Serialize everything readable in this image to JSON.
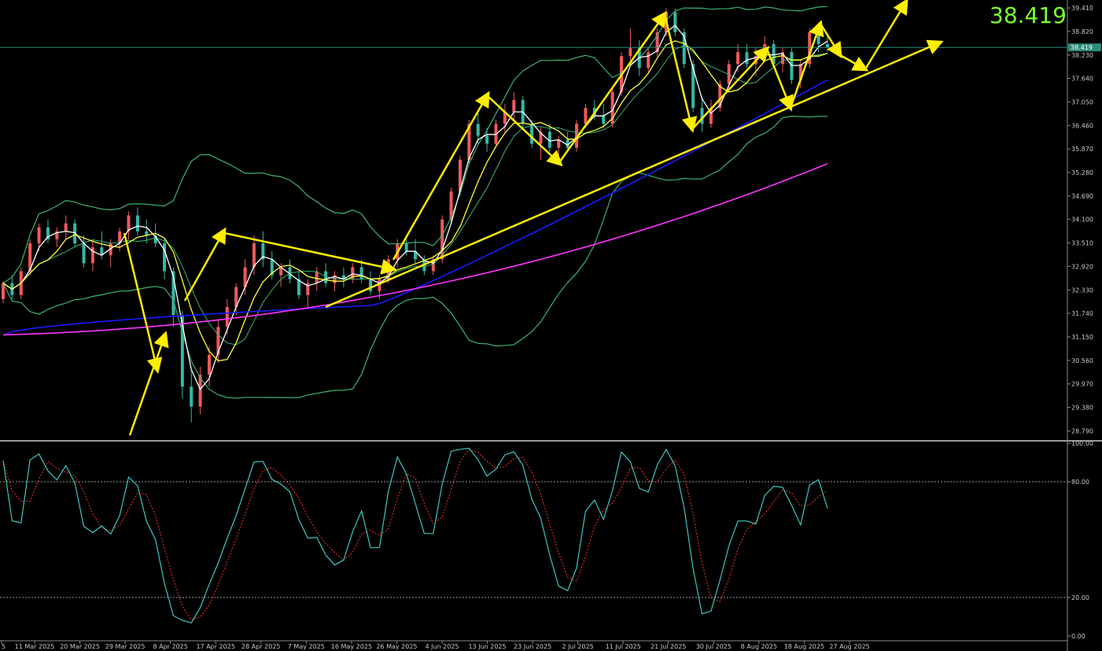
{
  "chart_data": {
    "type": "candlestick",
    "last_price": "38.419",
    "price_axis": {
      "ticks": [
        "39.410",
        "38.820",
        "38.230",
        "37.640",
        "37.050",
        "36.460",
        "35.870",
        "35.280",
        "34.690",
        "34.100",
        "33.510",
        "32.920",
        "32.330",
        "31.740",
        "31.150",
        "30.560",
        "29.970",
        "29.380",
        "28.790"
      ],
      "range": [
        28.6,
        39.55
      ]
    },
    "oscillator_axis": {
      "ticks": [
        "100.00",
        "80.00",
        "20.00",
        "0.00"
      ],
      "range": [
        0,
        100
      ],
      "levels": [
        80,
        20
      ]
    },
    "date_labels": [
      "5",
      "11 Mar 2025",
      "20 Mar 2025",
      "29 Mar 2025",
      "8 Apr 2025",
      "17 Apr 2025",
      "28 Apr 2025",
      "7 May 2025",
      "16 May 2025",
      "26 May 2025",
      "4 Jun 2025",
      "13 Jun 2025",
      "23 Jun 2025",
      "2 Jul 2025",
      "11 Jul 2025",
      "21 Jul 2025",
      "30 Jul 2025",
      "8 Aug 2025",
      "18 Aug 2025",
      "27 Aug 2025"
    ],
    "candles": [
      [
        32.1,
        32.55,
        32.0,
        32.5
      ],
      [
        32.5,
        32.7,
        32.1,
        32.2
      ],
      [
        32.2,
        32.9,
        32.1,
        32.8
      ],
      [
        32.8,
        33.6,
        32.7,
        33.5
      ],
      [
        33.5,
        34.0,
        33.3,
        33.9
      ],
      [
        33.9,
        34.1,
        33.5,
        33.6
      ],
      [
        33.6,
        33.9,
        33.4,
        33.8
      ],
      [
        33.8,
        34.2,
        33.6,
        34.0
      ],
      [
        34.0,
        34.1,
        33.4,
        33.5
      ],
      [
        33.5,
        33.7,
        32.9,
        33.0
      ],
      [
        33.0,
        33.6,
        32.8,
        33.4
      ],
      [
        33.4,
        33.8,
        33.1,
        33.2
      ],
      [
        33.2,
        33.6,
        32.9,
        33.5
      ],
      [
        33.5,
        33.9,
        33.3,
        33.8
      ],
      [
        33.8,
        34.3,
        33.6,
        34.2
      ],
      [
        34.2,
        34.4,
        33.7,
        33.8
      ],
      [
        33.8,
        34.1,
        33.5,
        33.7
      ],
      [
        33.7,
        34.0,
        33.4,
        33.5
      ],
      [
        33.5,
        33.6,
        32.6,
        32.8
      ],
      [
        32.8,
        32.9,
        31.4,
        31.7
      ],
      [
        31.7,
        31.8,
        29.6,
        29.9
      ],
      [
        29.9,
        30.3,
        29.0,
        29.4
      ],
      [
        29.4,
        30.4,
        29.2,
        30.2
      ],
      [
        30.2,
        30.9,
        29.9,
        30.7
      ],
      [
        30.7,
        31.6,
        30.5,
        31.4
      ],
      [
        31.4,
        32.1,
        31.2,
        31.9
      ],
      [
        31.9,
        32.5,
        31.7,
        32.4
      ],
      [
        32.4,
        33.1,
        32.2,
        32.9
      ],
      [
        32.9,
        33.7,
        32.7,
        33.5
      ],
      [
        33.5,
        33.8,
        32.9,
        33.1
      ],
      [
        33.1,
        33.3,
        32.6,
        32.7
      ],
      [
        32.7,
        33.0,
        32.4,
        32.9
      ],
      [
        32.9,
        33.1,
        32.5,
        32.6
      ],
      [
        32.6,
        32.8,
        32.1,
        32.2
      ],
      [
        32.2,
        32.6,
        31.9,
        32.5
      ],
      [
        32.5,
        32.9,
        32.3,
        32.8
      ],
      [
        32.8,
        33.0,
        32.4,
        32.5
      ],
      [
        32.5,
        32.8,
        32.3,
        32.7
      ],
      [
        32.7,
        32.9,
        32.4,
        32.6
      ],
      [
        32.6,
        33.0,
        32.5,
        32.9
      ],
      [
        32.9,
        33.1,
        32.5,
        32.6
      ],
      [
        32.6,
        32.8,
        32.2,
        32.3
      ],
      [
        32.3,
        32.7,
        32.1,
        32.6
      ],
      [
        32.6,
        33.2,
        32.5,
        33.1
      ],
      [
        33.1,
        33.6,
        32.9,
        33.5
      ],
      [
        33.5,
        33.7,
        33.2,
        33.3
      ],
      [
        33.3,
        33.6,
        33.0,
        33.1
      ],
      [
        33.1,
        33.2,
        32.7,
        32.8
      ],
      [
        32.8,
        33.2,
        32.7,
        33.1
      ],
      [
        33.1,
        34.2,
        33.0,
        34.1
      ],
      [
        34.1,
        34.9,
        34.0,
        34.8
      ],
      [
        34.8,
        35.7,
        34.7,
        35.6
      ],
      [
        35.6,
        36.6,
        35.5,
        36.5
      ],
      [
        36.5,
        36.8,
        36.0,
        36.2
      ],
      [
        36.2,
        36.4,
        35.8,
        36.0
      ],
      [
        36.0,
        36.6,
        35.9,
        36.5
      ],
      [
        36.5,
        37.0,
        36.3,
        36.8
      ],
      [
        36.8,
        37.3,
        36.6,
        37.1
      ],
      [
        37.1,
        37.2,
        36.4,
        36.5
      ],
      [
        36.5,
        36.6,
        35.9,
        36.0
      ],
      [
        36.0,
        36.4,
        35.6,
        36.3
      ],
      [
        36.3,
        36.5,
        35.8,
        35.9
      ],
      [
        35.9,
        36.2,
        35.7,
        36.1
      ],
      [
        36.1,
        36.3,
        35.8,
        35.9
      ],
      [
        35.9,
        36.6,
        35.8,
        36.5
      ],
      [
        36.5,
        37.0,
        36.4,
        36.9
      ],
      [
        36.9,
        37.1,
        36.6,
        36.7
      ],
      [
        36.7,
        37.0,
        36.4,
        36.5
      ],
      [
        36.5,
        37.4,
        36.4,
        37.3
      ],
      [
        37.3,
        38.3,
        37.2,
        38.2
      ],
      [
        38.2,
        38.9,
        38.0,
        38.4
      ],
      [
        38.4,
        38.6,
        37.7,
        37.9
      ],
      [
        37.9,
        38.4,
        37.8,
        38.3
      ],
      [
        38.3,
        38.9,
        38.2,
        38.8
      ],
      [
        38.8,
        39.4,
        38.7,
        39.3
      ],
      [
        39.3,
        39.4,
        38.7,
        38.8
      ],
      [
        38.8,
        38.9,
        37.9,
        38.0
      ],
      [
        38.0,
        38.1,
        36.8,
        36.9
      ],
      [
        36.9,
        37.2,
        36.3,
        36.5
      ],
      [
        36.5,
        37.1,
        36.4,
        36.9
      ],
      [
        36.9,
        37.6,
        36.8,
        37.5
      ],
      [
        37.5,
        38.1,
        37.4,
        38.0
      ],
      [
        38.0,
        38.5,
        37.8,
        38.3
      ],
      [
        38.3,
        38.5,
        37.9,
        38.0
      ],
      [
        38.0,
        38.4,
        37.7,
        38.2
      ],
      [
        38.2,
        38.7,
        38.1,
        38.5
      ],
      [
        38.5,
        38.6,
        37.9,
        38.0
      ],
      [
        38.0,
        38.4,
        37.8,
        38.3
      ],
      [
        38.3,
        38.4,
        37.5,
        37.6
      ],
      [
        37.6,
        38.1,
        37.4,
        38.0
      ],
      [
        38.0,
        38.9,
        37.9,
        38.8
      ],
      [
        38.8,
        39.0,
        38.3,
        38.5
      ],
      [
        38.5,
        38.7,
        38.3,
        38.42
      ]
    ],
    "colors": {
      "bull": "#f05a5a",
      "bear": "#35b8a6",
      "ma_fast": "#ffffff",
      "ma_slow": "#ffff33",
      "bollinger": "#3cb371",
      "ma_mid": "#1a1aff",
      "ma_long": "#ff33ff",
      "annotation": "#ffee00",
      "stoch_main": "#3cc8c0",
      "stoch_signal": "#ff3030",
      "price_line": "#2e8b7a"
    }
  }
}
